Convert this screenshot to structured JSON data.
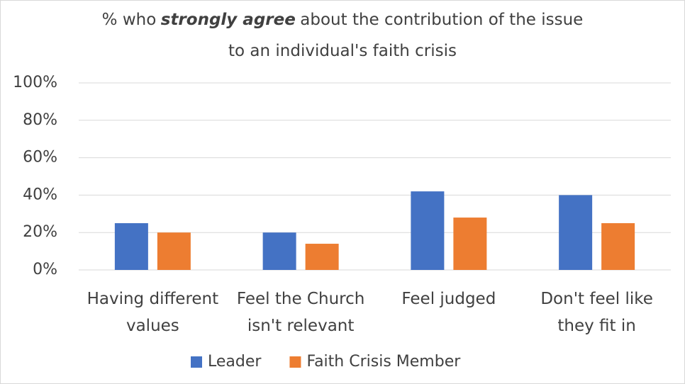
{
  "chart_data": {
    "type": "bar",
    "title_parts": [
      "% who",
      "strongly agree",
      "about the contribution of the issue"
    ],
    "title_line2": "to an individual's faith crisis",
    "categories": [
      "Having different values",
      "Feel the Church isn't relevant",
      "Feel judged",
      "Don't feel like they fit in"
    ],
    "series": [
      {
        "name": "Leader",
        "color": "#4472c4",
        "values": [
          25,
          20,
          42,
          40
        ]
      },
      {
        "name": "Faith Crisis Member",
        "color": "#ed7d31",
        "values": [
          20,
          14,
          28,
          25
        ]
      }
    ],
    "ylim": [
      0,
      100
    ],
    "yticks": [
      {
        "value": 0,
        "label": "0%"
      },
      {
        "value": 20,
        "label": "20%"
      },
      {
        "value": 40,
        "label": "40%"
      },
      {
        "value": 60,
        "label": "60%"
      },
      {
        "value": 80,
        "label": "80%"
      },
      {
        "value": 100,
        "label": "100%"
      }
    ],
    "grid": true,
    "legend": "bottom"
  }
}
